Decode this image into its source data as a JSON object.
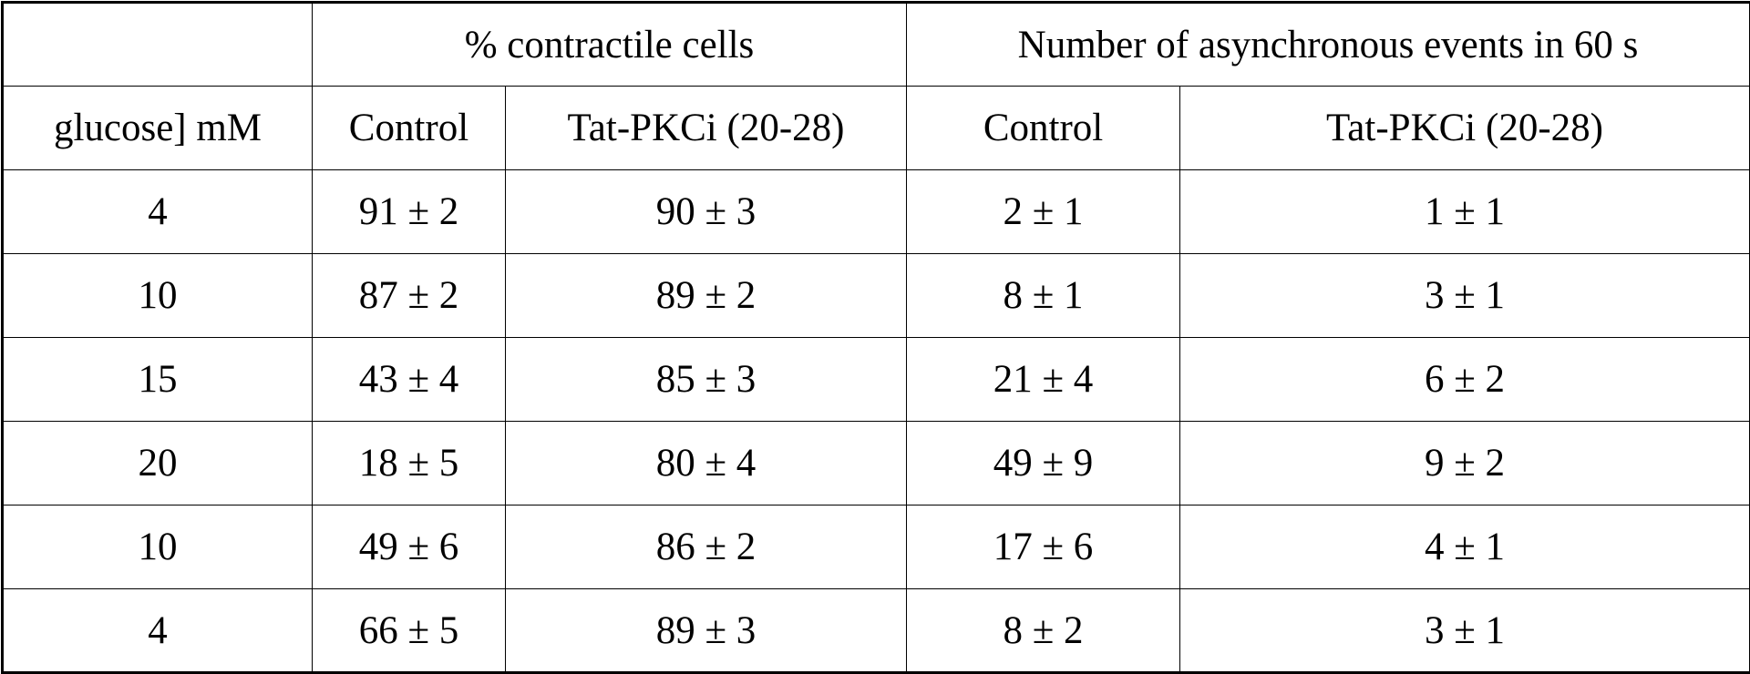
{
  "header": {
    "group_contractile": "% contractile cells",
    "group_async": "Number of asynchronous events in 60 s",
    "col_glucose": "glucose] mM",
    "col_control_1": "Control",
    "col_tat_1": "Tat-PKCi (20-28)",
    "col_control_2": "Control",
    "col_tat_2": "Tat-PKCi (20-28)"
  },
  "rows": [
    {
      "glucose": "4",
      "contractile_control": "91 ± 2",
      "contractile_tat": "90 ± 3",
      "async_control": "2 ± 1",
      "async_tat": "1 ± 1"
    },
    {
      "glucose": "10",
      "contractile_control": "87 ± 2",
      "contractile_tat": "89 ± 2",
      "async_control": "8 ± 1",
      "async_tat": "3 ± 1"
    },
    {
      "glucose": "15",
      "contractile_control": "43 ± 4",
      "contractile_tat": "85 ± 3",
      "async_control": "21 ± 4",
      "async_tat": "6 ± 2"
    },
    {
      "glucose": "20",
      "contractile_control": "18 ± 5",
      "contractile_tat": "80 ± 4",
      "async_control": "49 ± 9",
      "async_tat": "9 ± 2"
    },
    {
      "glucose": "10",
      "contractile_control": "49 ± 6",
      "contractile_tat": "86 ± 2",
      "async_control": "17 ± 6",
      "async_tat": "4 ± 1"
    },
    {
      "glucose": "4",
      "contractile_control": "66 ± 5",
      "contractile_tat": "89 ± 3",
      "async_control": "8 ± 2",
      "async_tat": "3 ± 1"
    }
  ]
}
